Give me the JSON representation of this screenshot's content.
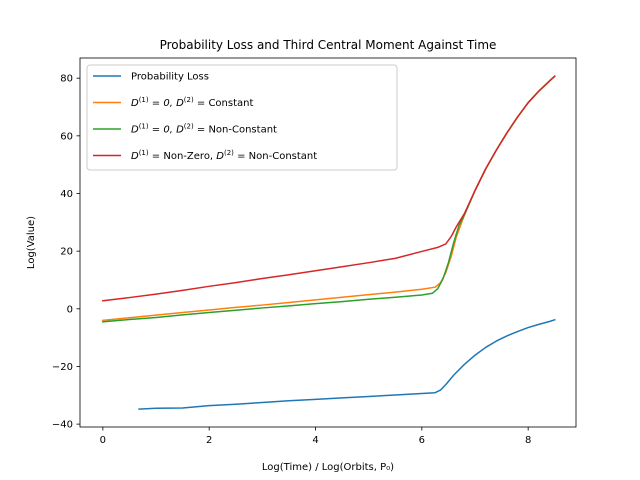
{
  "chart_data": {
    "type": "line",
    "title": "Probability Loss and Third Central Moment Against Time",
    "xlabel": "Log(Time) / Log(Orbits, P₀)",
    "ylabel": "Log(Value)",
    "xlim": [
      -0.43,
      8.9
    ],
    "ylim": [
      -41,
      87
    ],
    "xticks": [
      0,
      2,
      4,
      6,
      8
    ],
    "yticks": [
      -40,
      -20,
      0,
      20,
      40,
      60,
      80
    ],
    "grid": false,
    "legend_position": "upper-left",
    "series": [
      {
        "name": "Probability Loss",
        "color": "#1f77b4",
        "points": [
          [
            0.68,
            -34.8
          ],
          [
            1.0,
            -34.5
          ],
          [
            1.5,
            -34.4
          ],
          [
            2.0,
            -33.6
          ],
          [
            2.5,
            -33.1
          ],
          [
            3.0,
            -32.5
          ],
          [
            3.5,
            -31.9
          ],
          [
            4.0,
            -31.4
          ],
          [
            4.5,
            -30.9
          ],
          [
            5.0,
            -30.4
          ],
          [
            5.5,
            -29.9
          ],
          [
            6.0,
            -29.4
          ],
          [
            6.25,
            -29.1
          ],
          [
            6.35,
            -28.2
          ],
          [
            6.45,
            -26.3
          ],
          [
            6.6,
            -23.0
          ],
          [
            6.8,
            -19.3
          ],
          [
            7.0,
            -16.1
          ],
          [
            7.2,
            -13.4
          ],
          [
            7.4,
            -11.2
          ],
          [
            7.6,
            -9.4
          ],
          [
            7.8,
            -7.9
          ],
          [
            8.0,
            -6.5
          ],
          [
            8.2,
            -5.4
          ],
          [
            8.4,
            -4.4
          ],
          [
            8.5,
            -3.8
          ]
        ]
      },
      {
        "name": "$D^{(1)} = 0, D^{(2)} =$ Constant",
        "color": "#ff7f0e",
        "points": [
          [
            0,
            -4.0
          ],
          [
            0.5,
            -3.1
          ],
          [
            1.0,
            -2.2
          ],
          [
            1.5,
            -1.3
          ],
          [
            2.0,
            -0.4
          ],
          [
            2.5,
            0.5
          ],
          [
            3.0,
            1.3
          ],
          [
            3.5,
            2.2
          ],
          [
            4.0,
            3.1
          ],
          [
            4.5,
            4.0
          ],
          [
            5.0,
            4.9
          ],
          [
            5.5,
            5.8
          ],
          [
            6.0,
            6.8
          ],
          [
            6.25,
            7.5
          ],
          [
            6.35,
            9.0
          ],
          [
            6.45,
            12.5
          ],
          [
            6.55,
            18.0
          ],
          [
            6.65,
            25.0
          ],
          [
            6.8,
            32.5
          ],
          [
            7.0,
            41.0
          ],
          [
            7.2,
            48.5
          ],
          [
            7.4,
            55.0
          ],
          [
            7.6,
            61.0
          ],
          [
            7.8,
            66.5
          ],
          [
            8.0,
            71.5
          ],
          [
            8.2,
            75.5
          ],
          [
            8.4,
            79.0
          ],
          [
            8.5,
            80.7
          ]
        ]
      },
      {
        "name": "$D^{(1)} = 0, D^{(2)} =$ Non-Constant",
        "color": "#2ca02c",
        "points": [
          [
            0,
            -4.5
          ],
          [
            0.5,
            -3.7
          ],
          [
            1.0,
            -3.0
          ],
          [
            1.5,
            -2.1
          ],
          [
            2.0,
            -1.3
          ],
          [
            2.5,
            -0.5
          ],
          [
            3.0,
            0.3
          ],
          [
            3.5,
            1.0
          ],
          [
            4.0,
            1.8
          ],
          [
            4.5,
            2.5
          ],
          [
            5.0,
            3.3
          ],
          [
            5.5,
            4.0
          ],
          [
            6.0,
            4.8
          ],
          [
            6.2,
            5.4
          ],
          [
            6.3,
            7.0
          ],
          [
            6.4,
            10.5
          ],
          [
            6.5,
            16.0
          ],
          [
            6.6,
            23.0
          ],
          [
            6.7,
            29.0
          ],
          [
            6.8,
            32.5
          ],
          [
            7.0,
            41.0
          ],
          [
            7.2,
            48.5
          ],
          [
            7.4,
            55.0
          ],
          [
            7.6,
            61.0
          ],
          [
            7.8,
            66.5
          ],
          [
            8.0,
            71.5
          ],
          [
            8.2,
            75.5
          ],
          [
            8.4,
            79.0
          ],
          [
            8.5,
            80.7
          ]
        ]
      },
      {
        "name": "$D^{(1)} =$Non-Zero, $D^{(2)} =$ Non-Constant",
        "color": "#d62728",
        "points": [
          [
            0,
            2.8
          ],
          [
            0.5,
            3.9
          ],
          [
            1.0,
            5.1
          ],
          [
            1.5,
            6.4
          ],
          [
            2.0,
            7.8
          ],
          [
            2.5,
            9.1
          ],
          [
            3.0,
            10.5
          ],
          [
            3.5,
            11.8
          ],
          [
            4.0,
            13.2
          ],
          [
            4.5,
            14.6
          ],
          [
            5.0,
            16.0
          ],
          [
            5.5,
            17.5
          ],
          [
            6.0,
            19.9
          ],
          [
            6.3,
            21.3
          ],
          [
            6.45,
            22.5
          ],
          [
            6.55,
            25.0
          ],
          [
            6.65,
            28.5
          ],
          [
            6.8,
            33.0
          ],
          [
            7.0,
            41.0
          ],
          [
            7.2,
            48.5
          ],
          [
            7.4,
            55.0
          ],
          [
            7.6,
            61.0
          ],
          [
            7.8,
            66.5
          ],
          [
            8.0,
            71.5
          ],
          [
            8.2,
            75.5
          ],
          [
            8.4,
            79.0
          ],
          [
            8.5,
            80.7
          ]
        ]
      }
    ]
  }
}
